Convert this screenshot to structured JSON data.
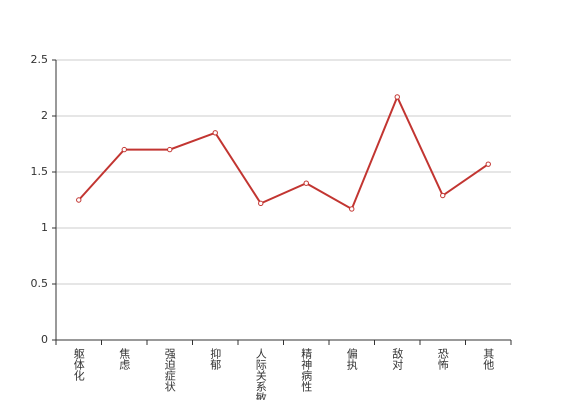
{
  "chart_data": {
    "type": "line",
    "categories": [
      "躯体化",
      "焦虑",
      "强迫症状",
      "抑郁",
      "人际关系敏感",
      "精神病性",
      "偏执",
      "敌对",
      "恐怖",
      "其他"
    ],
    "values": [
      1.25,
      1.7,
      1.7,
      1.85,
      1.22,
      1.4,
      1.17,
      2.17,
      1.29,
      1.57
    ],
    "color": "#c23531",
    "ylim": [
      0,
      2.5
    ],
    "yticks": [
      0,
      0.5,
      1,
      1.5,
      2,
      2.5
    ],
    "grid": true
  }
}
